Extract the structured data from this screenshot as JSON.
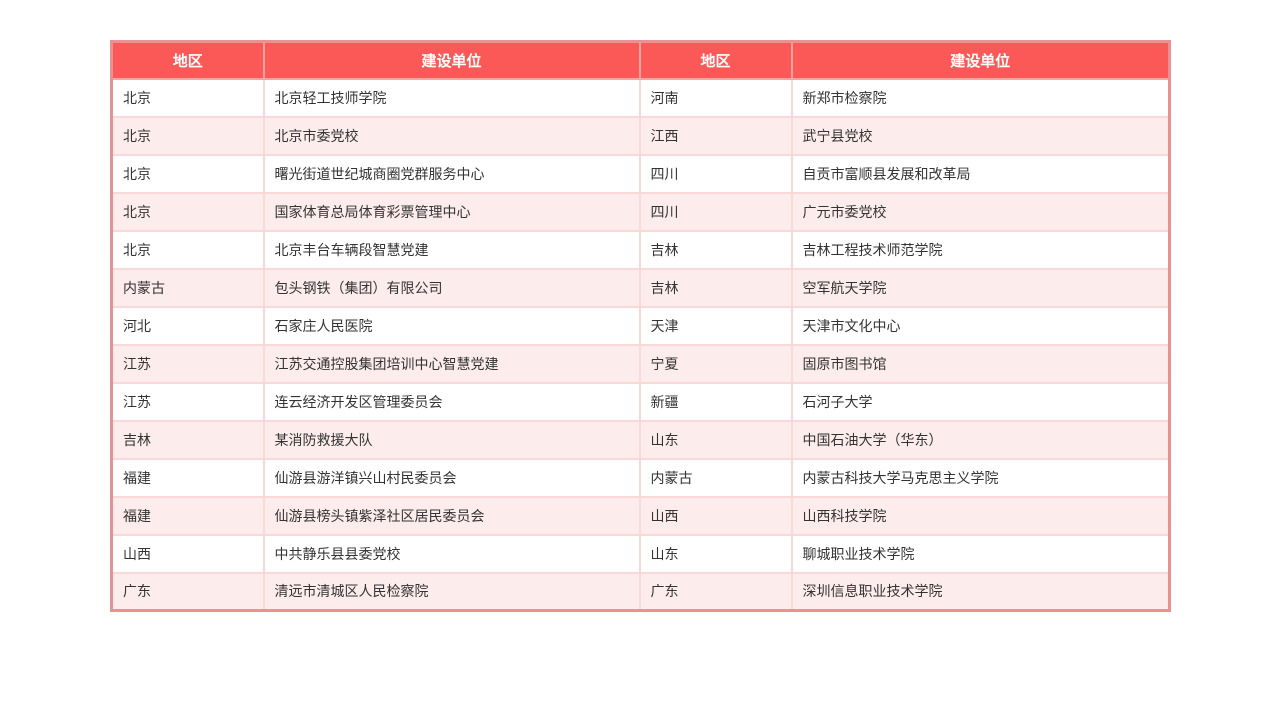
{
  "table": {
    "headers": [
      "地区",
      "建设单位",
      "地区",
      "建设单位"
    ],
    "rows": [
      [
        "北京",
        "北京轻工技师学院",
        "河南",
        "新郑市检察院"
      ],
      [
        "北京",
        "北京市委党校",
        "江西",
        "武宁县党校"
      ],
      [
        "北京",
        "曙光街道世纪城商圈党群服务中心",
        "四川",
        "自贡市富顺县发展和改革局"
      ],
      [
        "北京",
        "国家体育总局体育彩票管理中心",
        "四川",
        "广元市委党校"
      ],
      [
        "北京",
        "北京丰台车辆段智慧党建",
        "吉林",
        "吉林工程技术师范学院"
      ],
      [
        "内蒙古",
        "包头钢铁（集团）有限公司",
        "吉林",
        "空军航天学院"
      ],
      [
        "河北",
        "石家庄人民医院",
        "天津",
        "天津市文化中心"
      ],
      [
        "江苏",
        "江苏交通控股集团培训中心智慧党建",
        "宁夏",
        "固原市图书馆"
      ],
      [
        "江苏",
        "连云经济开发区管理委员会",
        "新疆",
        "石河子大学"
      ],
      [
        "吉林",
        "某消防救援大队",
        "山东",
        "中国石油大学（华东）"
      ],
      [
        "福建",
        "仙游县游洋镇兴山村民委员会",
        "内蒙古",
        "内蒙古科技大学马克思主义学院"
      ],
      [
        "福建",
        "仙游县榜头镇紫泽社区居民委员会",
        "山西",
        "山西科技学院"
      ],
      [
        "山西",
        "中共静乐县县委党校",
        "山东",
        "聊城职业技术学院"
      ],
      [
        "广东",
        "清远市清城区人民检察院",
        "广东",
        "深圳信息职业技术学院"
      ]
    ]
  },
  "colors": {
    "header_bg": "#fb5858",
    "header_text": "#ffffff",
    "header_divider": "#fda1a1",
    "row_alt_bg": "#fdecec",
    "border_outer": "#ea9191",
    "border_inner": "#f8d8d8",
    "text": "#333333"
  }
}
